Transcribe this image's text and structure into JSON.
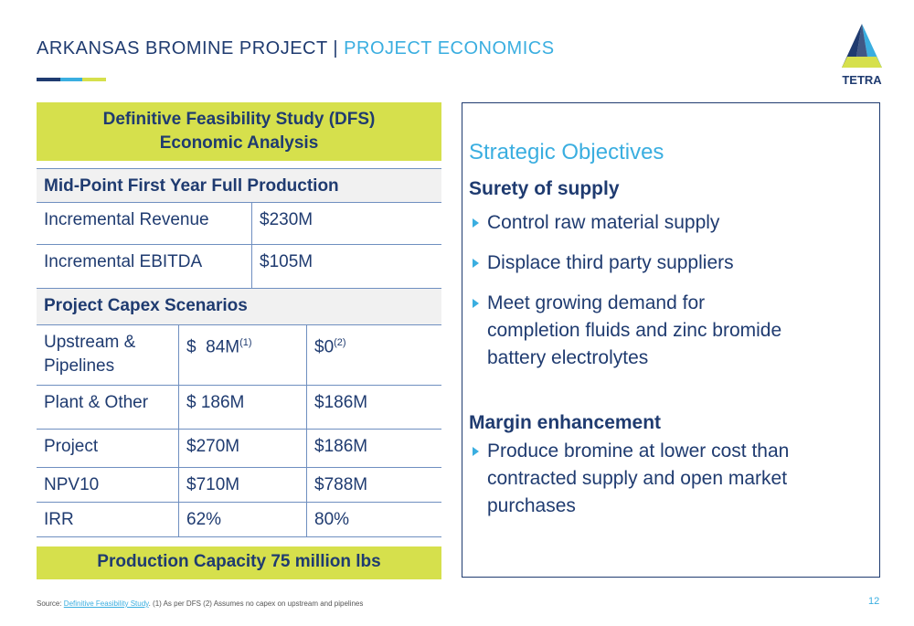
{
  "header": {
    "title": "ARKANSAS BROMINE PROJECT |",
    "subtitle": "PROJECT ECONOMICS",
    "logo": "TETRA"
  },
  "table": {
    "heading": [
      "Definitive Feasibility Study (DFS)",
      "Economic Analysis"
    ],
    "section1": "Mid-Point First Year Full Production",
    "rows1": [
      [
        "Incremental Revenue",
        "$230M"
      ],
      [
        "Incremental EBITDA",
        "$105M"
      ]
    ],
    "section2": "Project Capex Scenarios",
    "rows2": [
      [
        [
          "Upstream &",
          "Pipelines"
        ],
        {
          "text": "$  84M",
          "note": "(1)"
        },
        {
          "text": "$0",
          "note": "(2)"
        }
      ],
      [
        "Plant & Other",
        "$ 186M",
        "$186M"
      ],
      [
        "Project",
        "$270M",
        "$186M"
      ],
      [
        "NPV10",
        "$710M",
        "$788M"
      ],
      [
        "IRR",
        "62%",
        "80%"
      ]
    ],
    "footer": "Production Capacity 75 million lbs"
  },
  "objectives": {
    "heading": "Strategic Objectives",
    "groups": [
      {
        "title": "Surety of supply",
        "bullets": [
          [
            "Control raw material supply"
          ],
          [
            "Displace third party suppliers"
          ],
          [
            "Meet growing demand for",
            "completion fluids and zinc bromide",
            "battery electrolytes"
          ]
        ]
      },
      {
        "title": "Margin enhancement",
        "bullets": [
          [
            "Produce bromine at lower cost than",
            "contracted supply and open market",
            "purchases"
          ]
        ]
      }
    ]
  },
  "footnote": {
    "prefix": "Source: ",
    "link": "Definitive Feasibility Study",
    "rest": ". (1) As per DFS (2) Assumes no capex on upstream and pipelines",
    "page": "12"
  }
}
